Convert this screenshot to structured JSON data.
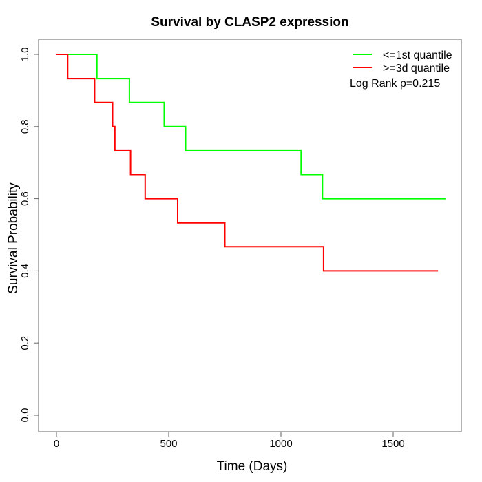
{
  "chart_data": {
    "type": "line",
    "subtype": "kaplan-meier-step",
    "title": "Survival by CLASP2 expression",
    "xlabel": "Time (Days)",
    "ylabel": "Survival Probability",
    "xlim": [
      0,
      1700
    ],
    "ylim": [
      0.0,
      1.0
    ],
    "grid": false,
    "legend_position": "top-right",
    "x_ticks": [
      {
        "v": 0,
        "label": "0"
      },
      {
        "v": 500,
        "label": "500"
      },
      {
        "v": 1000,
        "label": "1000"
      },
      {
        "v": 1500,
        "label": "1500"
      }
    ],
    "y_ticks": [
      {
        "v": 0.0,
        "label": "0.0"
      },
      {
        "v": 0.2,
        "label": "0.2"
      },
      {
        "v": 0.4,
        "label": "0.4"
      },
      {
        "v": 0.6,
        "label": "0.6"
      },
      {
        "v": 0.8,
        "label": "0.8"
      },
      {
        "v": 1.0,
        "label": "1.0"
      }
    ],
    "series": [
      {
        "name": "<=1st quantile",
        "color": "#00ff00",
        "start": [
          0,
          1.0
        ],
        "steps": [
          [
            180,
            0.933
          ],
          [
            325,
            0.867
          ],
          [
            480,
            0.8
          ],
          [
            575,
            0.733
          ],
          [
            1090,
            0.667
          ],
          [
            1185,
            0.6
          ]
        ],
        "end_time": 1735
      },
      {
        "name": ">=3d quantile",
        "color": "#ff0000",
        "start": [
          0,
          1.0
        ],
        "steps": [
          [
            50,
            0.933
          ],
          [
            170,
            0.867
          ],
          [
            250,
            0.8
          ],
          [
            260,
            0.733
          ],
          [
            330,
            0.667
          ],
          [
            395,
            0.6
          ],
          [
            540,
            0.533
          ],
          [
            750,
            0.467
          ],
          [
            1190,
            0.4
          ]
        ],
        "end_time": 1700
      }
    ],
    "annotation": "Log Rank p=0.215"
  },
  "legend": {
    "items": [
      {
        "label": "<=1st quantile",
        "color": "#00ff00"
      },
      {
        "label": ">=3d quantile",
        "color": "#ff0000"
      }
    ],
    "note": "Log Rank p=0.215"
  }
}
